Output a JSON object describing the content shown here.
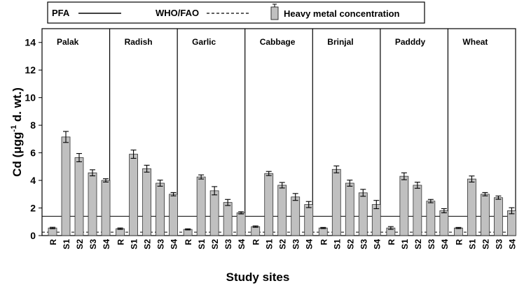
{
  "chart_data": {
    "type": "bar",
    "xlabel": "Study sites",
    "ylabel_main": "Cd (μgg",
    "ylabel_sup": "-1",
    "ylabel_tail": " d. wt.)",
    "ylim": [
      0,
      15
    ],
    "yticks": [
      0,
      2,
      4,
      6,
      8,
      10,
      12,
      14
    ],
    "legend": {
      "pfa": "PFA",
      "who": "WHO/FAO",
      "hm": "Heavy metal concentration"
    },
    "reference_lines": {
      "PFA": 1.4,
      "WHO/FAO": 0.25
    },
    "sites": [
      "R",
      "S1",
      "S2",
      "S3",
      "S4"
    ],
    "groups": [
      {
        "name": "Palak",
        "values": [
          0.55,
          7.15,
          5.65,
          4.55,
          4.0
        ],
        "errors": [
          0.05,
          0.4,
          0.3,
          0.22,
          0.12
        ]
      },
      {
        "name": "Radish",
        "values": [
          0.5,
          5.9,
          4.85,
          3.8,
          3.0
        ],
        "errors": [
          0.05,
          0.3,
          0.25,
          0.22,
          0.12
        ]
      },
      {
        "name": "Garlic",
        "values": [
          0.45,
          4.25,
          3.25,
          2.4,
          1.65
        ],
        "errors": [
          0.04,
          0.15,
          0.3,
          0.22,
          0.08
        ]
      },
      {
        "name": "Cabbage",
        "values": [
          0.65,
          4.5,
          3.65,
          2.8,
          2.25
        ],
        "errors": [
          0.05,
          0.15,
          0.2,
          0.25,
          0.22
        ]
      },
      {
        "name": "Brinjal",
        "values": [
          0.55,
          4.8,
          3.8,
          3.1,
          2.25
        ],
        "errors": [
          0.04,
          0.25,
          0.22,
          0.25,
          0.3
        ]
      },
      {
        "name": "Padddy",
        "values": [
          0.55,
          4.3,
          3.65,
          2.5,
          1.8
        ],
        "errors": [
          0.1,
          0.25,
          0.22,
          0.12,
          0.15
        ]
      },
      {
        "name": "Wheat",
        "values": [
          0.55,
          4.1,
          3.0,
          2.75,
          1.8
        ],
        "errors": [
          0.04,
          0.22,
          0.12,
          0.12,
          0.22
        ]
      }
    ],
    "colors": {
      "bar_fill": "#c0c0c0",
      "bar_stroke": "#333333",
      "axis": "#000000"
    }
  }
}
